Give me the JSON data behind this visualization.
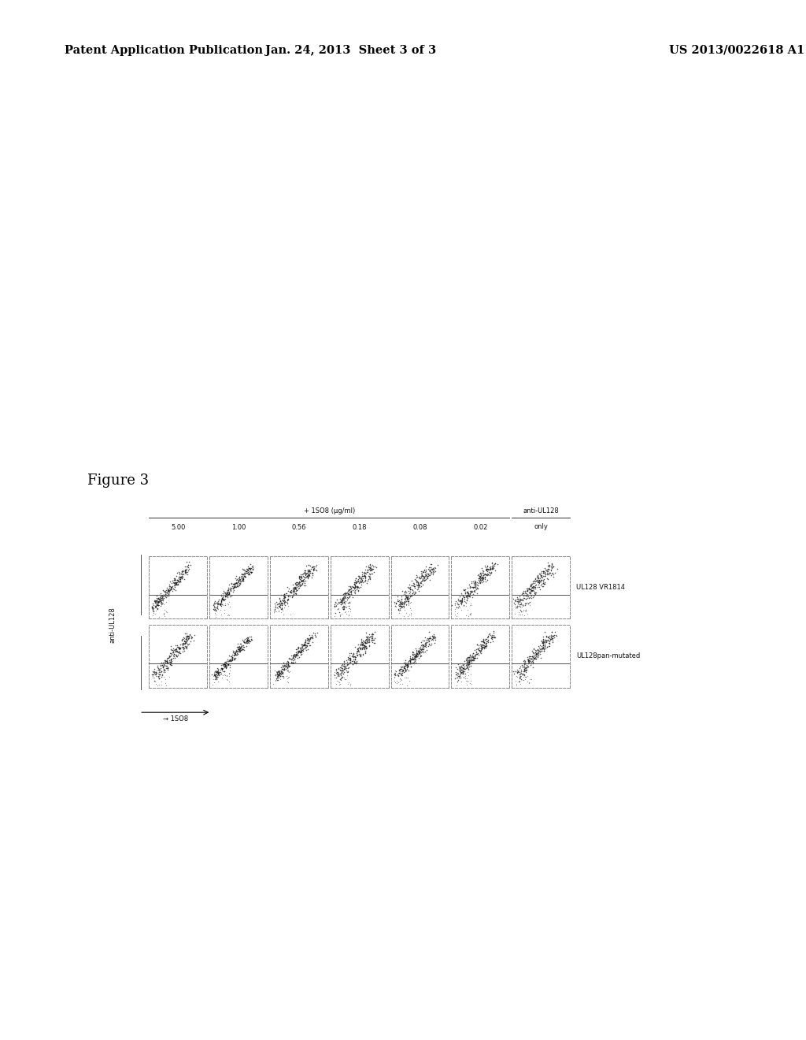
{
  "header_left": "Patent Application Publication",
  "header_center": "Jan. 24, 2013  Sheet 3 of 3",
  "header_right": "US 2013/0022618 A1",
  "figure_label": "Figure 3",
  "top_label": "+ 1SO8 (μg/ml)",
  "col_labels": [
    "5.00",
    "1.00",
    "0.56",
    "0.18",
    "0.08",
    "0.02",
    "only"
  ],
  "row_label1": "UL128 VR1814",
  "row_label2": "UL128pan-mutated",
  "y_axis_label": "anti-UL128",
  "x_axis_label": "→ 1SO8",
  "n_rows": 2,
  "n_cols": 7,
  "background_color": "#ffffff",
  "header_color": "#000000",
  "panel_border_color": "#777777"
}
